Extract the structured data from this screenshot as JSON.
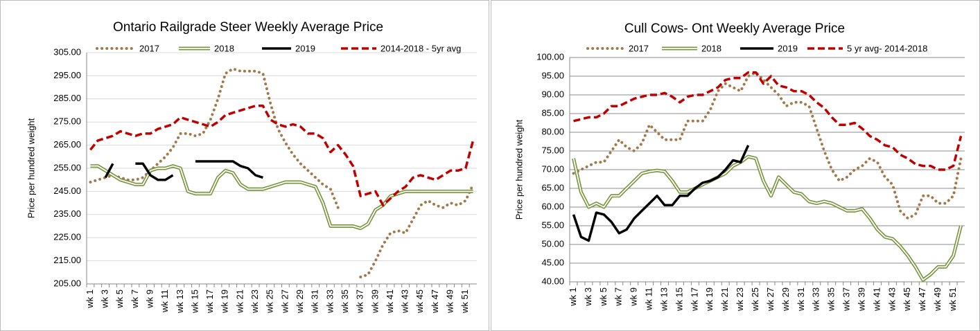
{
  "chart_data": [
    {
      "type": "line",
      "title": "Ontario Railgrade Steer Weekly Average Price",
      "y_label": "Price per hundred weight",
      "categories": [
        "wk 1",
        null,
        "wk 3",
        null,
        "wk 5",
        null,
        "wk 7",
        null,
        "wk 9",
        null,
        "wk 11",
        null,
        "wk 13",
        null,
        "wk 15",
        null,
        "wk 17",
        null,
        "wk 19",
        null,
        "wk 21",
        null,
        "wk 23",
        null,
        "wk 25",
        null,
        "wk 27",
        null,
        "wk 29",
        null,
        "wk 31",
        null,
        "wk 33",
        null,
        "wk 35",
        null,
        "wk 37",
        null,
        "wk 39",
        null,
        "wk 41",
        null,
        "wk 43",
        null,
        "wk 45",
        null,
        "wk 47",
        null,
        "wk 49",
        null,
        "wk 51",
        null
      ],
      "ylim": [
        205,
        305
      ],
      "yticks": [
        {
          "value": 205,
          "label": "205.00"
        },
        {
          "value": 215,
          "label": "215.00"
        },
        {
          "value": 225,
          "label": "225.00"
        },
        {
          "value": 235,
          "label": "235.00"
        },
        {
          "value": 245,
          "label": "245.00"
        },
        {
          "value": 255,
          "label": "255.00"
        },
        {
          "value": 265,
          "label": "265.00"
        },
        {
          "value": 275,
          "label": "275.00"
        },
        {
          "value": 285,
          "label": "285.00"
        },
        {
          "value": 295,
          "label": "295.00"
        },
        {
          "value": 305,
          "label": "305.00"
        }
      ],
      "grid": true,
      "grid_color": "#d9d9d9",
      "series": [
        {
          "name": "2017",
          "color": "#a07a4a",
          "style": "dotted",
          "values": [
            249,
            250,
            251,
            252,
            251,
            250,
            250,
            251,
            254,
            257,
            260,
            264,
            270,
            270,
            269,
            270,
            276,
            285,
            296,
            298,
            297,
            297,
            297,
            296,
            283,
            272,
            266,
            261,
            257,
            254,
            251,
            248,
            246,
            238,
            null,
            null,
            208,
            209,
            215,
            222,
            227,
            228,
            227,
            233,
            239,
            241,
            239,
            238,
            240,
            239,
            241,
            248
          ]
        },
        {
          "name": "2018",
          "color": "#77933c",
          "style": "double",
          "values": [
            256,
            256,
            254,
            252,
            250,
            249,
            248,
            248,
            254,
            255,
            255,
            256,
            255,
            245,
            244,
            244,
            244,
            251,
            254,
            253,
            248,
            246,
            246,
            246,
            247,
            248,
            249,
            249,
            249,
            248,
            247,
            240,
            230,
            230,
            230,
            230,
            229,
            231,
            237,
            239,
            243,
            244,
            245,
            245,
            245,
            245,
            245,
            245,
            245,
            245,
            245,
            245
          ]
        },
        {
          "name": "2019",
          "color": "#000000",
          "style": "solid",
          "values": [
            null,
            null,
            251,
            257,
            null,
            null,
            257,
            257,
            252,
            250,
            250,
            252,
            null,
            null,
            258,
            258,
            258,
            258,
            258,
            258,
            256,
            255,
            252,
            251,
            null,
            null,
            null,
            null,
            null,
            null,
            null,
            null,
            null,
            null,
            null,
            null,
            null,
            null,
            null,
            null,
            null,
            null,
            null,
            null,
            null,
            null,
            null,
            null,
            null,
            null,
            null,
            null
          ]
        },
        {
          "name": "2014-2018 - 5yr avg",
          "color": "#c00000",
          "style": "dashed",
          "values": [
            263,
            267,
            268,
            269,
            271,
            270,
            269,
            270,
            270,
            272,
            273,
            274,
            277,
            276,
            275,
            274,
            273,
            275,
            278,
            279,
            280,
            281,
            282,
            282,
            276,
            274,
            273,
            274,
            273,
            270,
            270,
            268,
            262,
            265,
            261,
            256,
            243,
            244,
            245,
            239,
            242,
            245,
            247,
            251,
            252,
            251,
            250,
            252,
            254,
            254,
            255,
            267
          ]
        }
      ]
    },
    {
      "type": "line",
      "title": "Cull Cows- Ont Weekly Average Price",
      "y_label": "Price per hundred weight",
      "categories": [
        "wk 1",
        null,
        "wk 3",
        null,
        "wk 5",
        null,
        "wk 7",
        null,
        "wk 9",
        null,
        "wk 11",
        null,
        "wk 13",
        null,
        "wk 15",
        null,
        "wk 17",
        null,
        "wk 19",
        null,
        "wk 21",
        null,
        "wk 23",
        null,
        "wk 25",
        null,
        "wk 27",
        null,
        "wk 29",
        null,
        "wk 31",
        null,
        "wk 33",
        null,
        "wk 35",
        null,
        "wk 37",
        null,
        "wk 39",
        null,
        "wk 41",
        null,
        "wk 43",
        null,
        "wk 45",
        null,
        "wk 47",
        null,
        "wk 49",
        null,
        "wk 51",
        null
      ],
      "ylim": [
        40,
        100
      ],
      "yticks": [
        {
          "value": 40,
          "label": "40.00"
        },
        {
          "value": 45,
          "label": "45.00"
        },
        {
          "value": 50,
          "label": "50.00"
        },
        {
          "value": 55,
          "label": "55.00"
        },
        {
          "value": 60,
          "label": "60.00"
        },
        {
          "value": 65,
          "label": "65.00"
        },
        {
          "value": 70,
          "label": "70.00"
        },
        {
          "value": 75,
          "label": "75.00"
        },
        {
          "value": 80,
          "label": "80.00"
        },
        {
          "value": 85,
          "label": "85.00"
        },
        {
          "value": 90,
          "label": "90.00"
        },
        {
          "value": 95,
          "label": "95.00"
        },
        {
          "value": 100,
          "label": "100.00"
        }
      ],
      "grid": true,
      "grid_color": "#8c8c8c",
      "series": [
        {
          "name": "2017",
          "color": "#a07a4a",
          "style": "dotted",
          "values": [
            69,
            70,
            71,
            72,
            72,
            75,
            78,
            76,
            75,
            77,
            82,
            80,
            78,
            78,
            78,
            83,
            83,
            83,
            86,
            91,
            93,
            92,
            91,
            95,
            96,
            94,
            92,
            90,
            87,
            88,
            88,
            87,
            81,
            75,
            70,
            67,
            68,
            70,
            71,
            73,
            72,
            68,
            66,
            59,
            57,
            58,
            63,
            63,
            61,
            61,
            63,
            73
          ]
        },
        {
          "name": "2018",
          "color": "#77933c",
          "style": "double",
          "values": [
            73,
            64,
            60,
            61,
            60,
            63,
            63,
            65,
            67,
            69,
            69.5,
            69.8,
            69.5,
            67,
            64,
            64,
            65,
            66,
            67,
            68,
            69,
            71,
            72,
            73.5,
            73,
            67,
            63,
            68,
            66,
            64,
            63.5,
            61.5,
            61,
            61.5,
            61,
            60,
            59,
            59,
            59.5,
            57,
            54,
            52,
            51.5,
            49.5,
            47,
            44,
            40.5,
            42,
            44,
            44,
            47,
            55
          ]
        },
        {
          "name": "2019",
          "color": "#000000",
          "style": "solid",
          "values": [
            58,
            52,
            51,
            58.5,
            58,
            56,
            53,
            54,
            57,
            59,
            61,
            63,
            60.5,
            60.5,
            63,
            63,
            65,
            66.5,
            67,
            68,
            70,
            72.5,
            72,
            76.5,
            null,
            null,
            null,
            null,
            null,
            null,
            null,
            null,
            null,
            null,
            null,
            null,
            null,
            null,
            null,
            null,
            null,
            null,
            null,
            null,
            null,
            null,
            null,
            null,
            null,
            null,
            null,
            null
          ]
        },
        {
          "name": "5 yr avg- 2014-2018",
          "color": "#c00000",
          "style": "dashed",
          "values": [
            83,
            83.5,
            84,
            84,
            85,
            87,
            87,
            88,
            89,
            89.5,
            90,
            90,
            90.5,
            89.5,
            88,
            89.5,
            90,
            90,
            91,
            92,
            94,
            94.5,
            94.5,
            96,
            96,
            93,
            95,
            92.5,
            92,
            91,
            91,
            90,
            88,
            86.5,
            84,
            82,
            82,
            82.5,
            81,
            79,
            78,
            76.5,
            76,
            74,
            73,
            71.5,
            71,
            71,
            70,
            70,
            71,
            79
          ]
        }
      ]
    }
  ]
}
